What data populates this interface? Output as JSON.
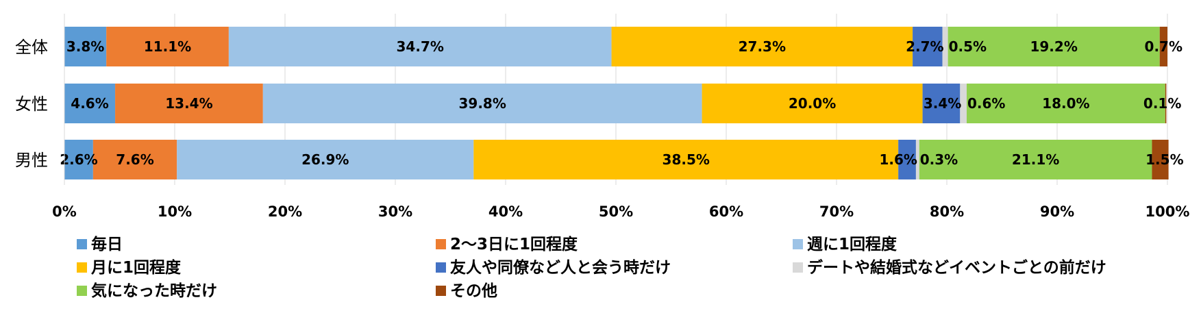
{
  "chart_data": {
    "type": "bar",
    "orientation": "horizontal",
    "stacked": "percent",
    "categories": [
      "全体",
      "女性",
      "男性"
    ],
    "series": [
      {
        "name": "毎日",
        "color": "#5b9bd5",
        "values": [
          3.8,
          4.6,
          2.6
        ],
        "labels": [
          "3.8%",
          "4.6%",
          "2.6%"
        ]
      },
      {
        "name": "2〜3日に1回程度",
        "color": "#ed7d31",
        "values": [
          11.1,
          13.4,
          7.6
        ],
        "labels": [
          "11.1%",
          "13.4%",
          "7.6%"
        ]
      },
      {
        "name": "週に1回程度",
        "color": "#9dc3e6",
        "values": [
          34.7,
          39.8,
          26.9
        ],
        "labels": [
          "34.7%",
          "39.8%",
          "26.9%"
        ]
      },
      {
        "name": "月に1回程度",
        "color": "#ffc000",
        "values": [
          27.3,
          20.0,
          38.5
        ],
        "labels": [
          "27.3%",
          "20.0%",
          "38.5%"
        ]
      },
      {
        "name": "友人や同僚など人と会う時だけ",
        "color": "#4472c4",
        "values": [
          2.7,
          3.4,
          1.6
        ],
        "labels": [
          "2.7%",
          "3.4%",
          "1.6%"
        ]
      },
      {
        "name": "デートや結婚式などイベントごとの前だけ",
        "color": "#d9d9d9",
        "values": [
          0.5,
          0.6,
          0.3
        ],
        "labels": [
          "0.5%",
          "0.6%",
          "0.3%"
        ]
      },
      {
        "name": "気になった時だけ",
        "color": "#92d050",
        "values": [
          19.2,
          18.0,
          21.1
        ],
        "labels": [
          "19.2%",
          "18.0%",
          "21.1%"
        ]
      },
      {
        "name": "その他",
        "color": "#9e480e",
        "values": [
          0.7,
          0.1,
          1.5
        ],
        "labels": [
          "0.7%",
          "0.1%",
          "1.5%"
        ]
      }
    ],
    "x_ticks": [
      "0%",
      "10%",
      "20%",
      "30%",
      "40%",
      "50%",
      "60%",
      "70%",
      "80%",
      "90%",
      "100%"
    ],
    "xlim": [
      0,
      100
    ],
    "grid": "vertical",
    "legend_position": "bottom",
    "title": "",
    "xlabel": "",
    "ylabel": ""
  }
}
